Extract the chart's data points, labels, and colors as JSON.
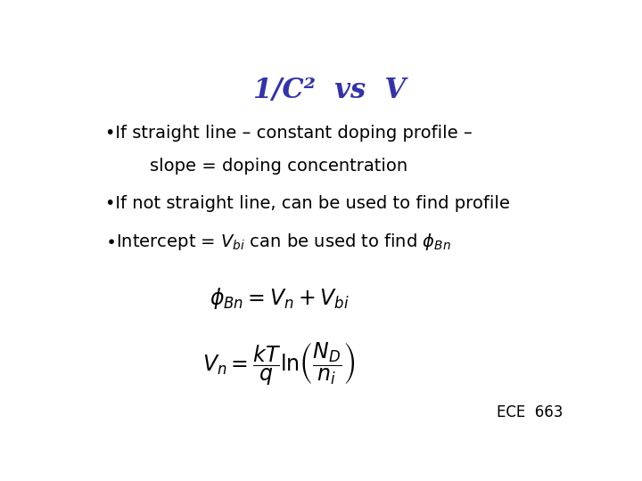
{
  "title": "1/C²  vs  V",
  "title_color": "#3333aa",
  "title_fontsize": 22,
  "bg_color": "#ffffff",
  "bullet1_line1": "•If straight line – constant doping profile –",
  "bullet1_line2": "slope = doping concentration",
  "bullet2": "•If not straight line, can be used to find profile",
  "bullet3": "•Intercept = V",
  "footer": "ECE  663",
  "text_color": "#000000",
  "text_fontsize": 14,
  "footer_fontsize": 12
}
